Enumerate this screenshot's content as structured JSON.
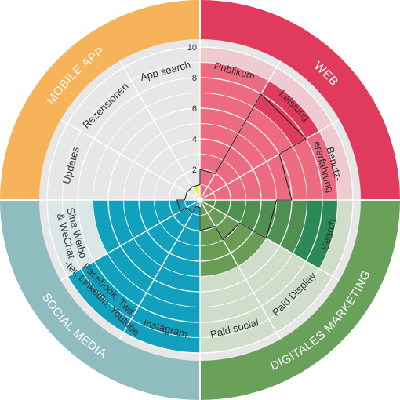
{
  "chart_data": {
    "type": "radar",
    "rmax": 10,
    "ticks": [
      "2",
      "4",
      "6",
      "8",
      "10"
    ],
    "tick_values": [
      2,
      4,
      6,
      8,
      10
    ],
    "groups": [
      {
        "name": "WEB",
        "color": "#e03a5c",
        "light": "#f4b3c0"
      },
      {
        "name": "DIGITALES MARKETING",
        "color": "#6aa15a",
        "light": "#bcd6b2"
      },
      {
        "name": "SOCIAL MEDIA",
        "color": "#8fbcbf",
        "light": "#d2e6e7"
      },
      {
        "name": "MOBILE APP",
        "color": "#f6b35a",
        "light": "#fbe1b4"
      }
    ],
    "categories": [
      {
        "label": "Publikum",
        "group": 0,
        "value": 9,
        "fill": "#ec6b80"
      },
      {
        "label": "Leistung",
        "group": 0,
        "value": 9,
        "fill": "#ec6b80",
        "highlight": "#e03a5c"
      },
      {
        "label": "Benutz-\nererfahrung",
        "group": 0,
        "value": 9,
        "fill": "#ec6b80"
      },
      {
        "label": "Search",
        "group": 1,
        "value": 9,
        "fill": "#4f8f4f",
        "highlight": "#2d8a57"
      },
      {
        "label": "Paid Display",
        "group": 1,
        "value": 5,
        "fill": "#6a9c55"
      },
      {
        "label": "Paid social",
        "group": 1,
        "value": 5,
        "fill": "#6a9c55"
      },
      {
        "label": "Instagram",
        "group": 2,
        "value": 10,
        "fill": "#11a0bd"
      },
      {
        "label": "Facebook, Twit-\n-ter, LinkedIn, Youtube",
        "group": 2,
        "value": 10,
        "fill": "#11a0bd"
      },
      {
        "label": "Sina Weibo\n& WeChat",
        "group": 2,
        "value": 7,
        "fill": "#11a0bd"
      },
      {
        "label": "Updates",
        "group": 3,
        "value": 0,
        "fill": "#f3ea5a"
      },
      {
        "label": "Rezensionen",
        "group": 3,
        "value": 0,
        "fill": "#f3ea5a"
      },
      {
        "label": "App search",
        "group": 3,
        "value": 1,
        "fill": "#f3ea5a"
      }
    ],
    "outline_values": [
      2,
      8,
      6,
      5,
      3,
      2,
      0.5,
      1,
      1.5,
      1,
      1,
      1
    ],
    "grid": true
  }
}
